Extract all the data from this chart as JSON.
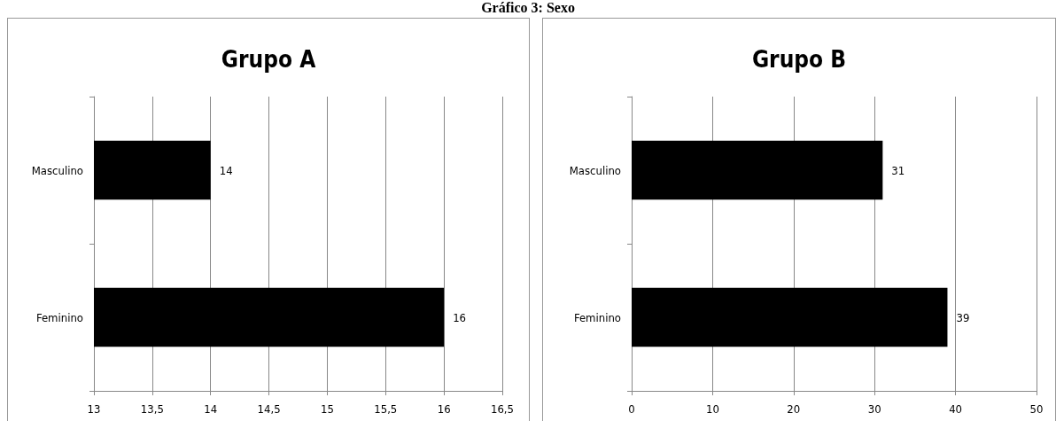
{
  "chart_data": [
    {
      "type": "bar",
      "orientation": "horizontal",
      "title": "Grupo A",
      "annotations": [
        "Gráfico 3: Sexo"
      ],
      "categories": [
        "Masculino",
        "Feminino"
      ],
      "series": [
        {
          "color": "#000000",
          "values": [
            14,
            16
          ]
        }
      ],
      "xlim": [
        13,
        16.5
      ],
      "xticks": [
        13,
        {
          "value": 13.5,
          "label": "13,5"
        },
        14,
        {
          "value": 14.5,
          "label": "14,5"
        },
        15,
        {
          "value": 15.5,
          "label": "15,5"
        },
        16,
        {
          "value": 16.5,
          "label": "16,5"
        }
      ],
      "grid": "x",
      "data_labels": true
    },
    {
      "type": "bar",
      "orientation": "horizontal",
      "title": "Grupo B",
      "categories": [
        "Masculino",
        "Feminino"
      ],
      "series": [
        {
          "color": "#000000",
          "values": [
            31,
            39
          ]
        }
      ],
      "xlim": [
        0,
        50
      ],
      "xticks": [
        0,
        10,
        20,
        30,
        40,
        50
      ],
      "grid": "x",
      "data_labels": true
    }
  ]
}
